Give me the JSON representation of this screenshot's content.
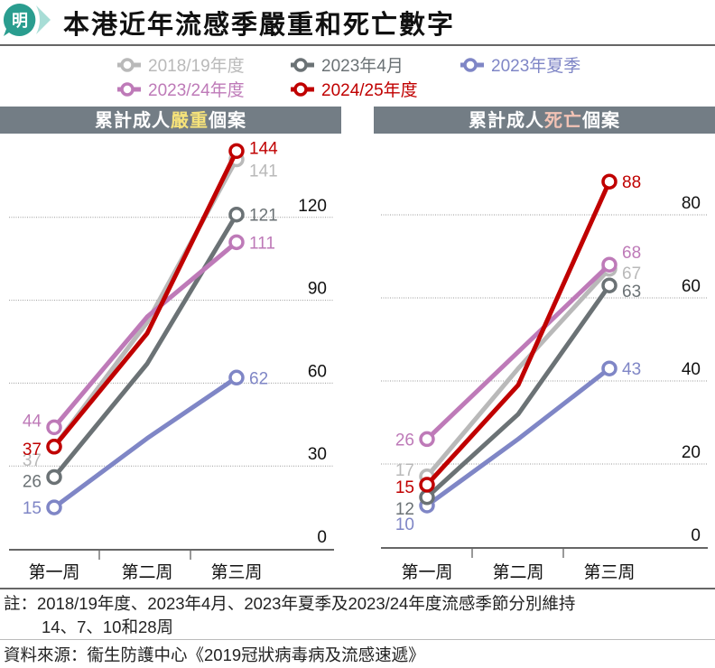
{
  "header": {
    "logo_glyph": "明",
    "title": "本港近年流感季嚴重和死亡數字"
  },
  "legend": [
    {
      "label": "2018/19年度",
      "color": "#b9b9b9"
    },
    {
      "label": "2023年4月",
      "color": "#6b7275"
    },
    {
      "label": "2023年夏季",
      "color": "#7f86c6"
    },
    {
      "label": "2023/24年度",
      "color": "#be7ab8"
    },
    {
      "label": "2024/25年度",
      "color": "#c00000"
    }
  ],
  "panels": [
    {
      "head_pre": "累計成人",
      "head_hl": "嚴重",
      "head_post": "個案"
    },
    {
      "head_pre": "累計成人",
      "head_hl": "死亡",
      "head_post": "個案"
    }
  ],
  "chart_data": [
    {
      "type": "line",
      "title": "累計成人嚴重個案",
      "categories": [
        "第一周",
        "第二周",
        "第三周"
      ],
      "ylim": [
        0,
        150
      ],
      "yticks": [
        0,
        30,
        60,
        90,
        120
      ],
      "grid": true,
      "series": [
        {
          "name": "2018/19年度",
          "color": "#b9b9b9",
          "values": [
            37,
            82,
            141
          ],
          "labels": [
            "37",
            null,
            "141"
          ]
        },
        {
          "name": "2023年4月",
          "color": "#6b7275",
          "values": [
            26,
            67,
            121
          ],
          "labels": [
            "26",
            null,
            "121"
          ]
        },
        {
          "name": "2023年夏季",
          "color": "#7f86c6",
          "values": [
            15,
            40,
            62
          ],
          "labels": [
            "15",
            null,
            "62"
          ]
        },
        {
          "name": "2023/24年度",
          "color": "#be7ab8",
          "values": [
            44,
            84,
            111
          ],
          "labels": [
            "44",
            null,
            "111"
          ]
        },
        {
          "name": "2024/25年度",
          "color": "#c00000",
          "values": [
            37,
            78,
            144
          ],
          "labels": [
            "37",
            null,
            "144"
          ]
        }
      ]
    },
    {
      "type": "line",
      "title": "累計成人死亡個案",
      "categories": [
        "第一周",
        "第二周",
        "第三周"
      ],
      "ylim": [
        0,
        90
      ],
      "yticks": [
        0,
        20,
        40,
        60,
        80
      ],
      "grid": true,
      "series": [
        {
          "name": "2018/19年度",
          "color": "#b9b9b9",
          "values": [
            17,
            43,
            67
          ],
          "labels": [
            "17",
            null,
            "67"
          ]
        },
        {
          "name": "2023年4月",
          "color": "#6b7275",
          "values": [
            12,
            32,
            63
          ],
          "labels": [
            "12",
            null,
            "63"
          ]
        },
        {
          "name": "2023年夏季",
          "color": "#7f86c6",
          "values": [
            10,
            26,
            43
          ],
          "labels": [
            "10",
            null,
            "43"
          ]
        },
        {
          "name": "2023/24年度",
          "color": "#be7ab8",
          "values": [
            26,
            47,
            68
          ],
          "labels": [
            "26",
            null,
            "68"
          ]
        },
        {
          "name": "2024/25年度",
          "color": "#c00000",
          "values": [
            15,
            39,
            88
          ],
          "labels": [
            "15",
            null,
            "88"
          ]
        }
      ]
    }
  ],
  "footer": {
    "note_line1": "註：2018/19年度、2023年4月、2023年夏季及2023/24年度流感季節分別維持",
    "note_line2": "14、7、10和28周",
    "source": "資料來源：衞生防護中心《2019冠狀病毒病及流感速遞》"
  }
}
